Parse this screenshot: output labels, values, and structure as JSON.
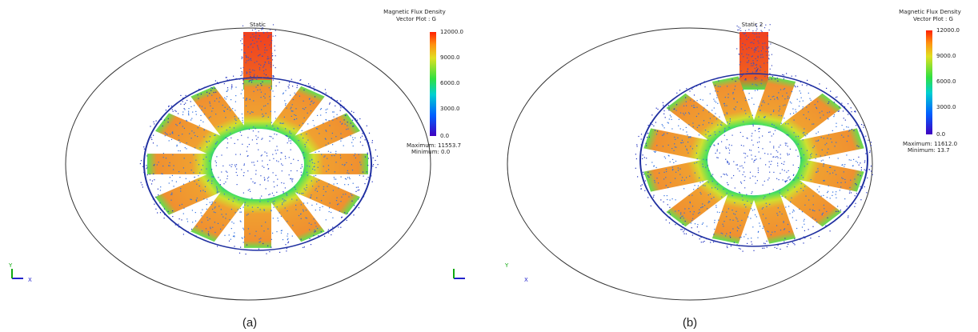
{
  "panels": [
    {
      "label": "Static",
      "legend_title": "Magnetic Flux Density",
      "legend_subtitle": "Vector Plot : G",
      "scale_labels": [
        "12000.0",
        "9000.0",
        "6000.0",
        "3000.0",
        "0.0"
      ],
      "maximum": "Maximum: 11553.7",
      "minimum": "Minimum: 0.0",
      "axis_y": "Y",
      "axis_x": "X",
      "caption": "(a)"
    },
    {
      "label": "Static 2",
      "legend_title": "Magnetic Flux Density",
      "legend_subtitle": "Vector Plot : G",
      "scale_labels": [
        "12000.0",
        "9000.0",
        "6000.0",
        "3000.0",
        "0.0"
      ],
      "maximum": "Maximum: 11612.0",
      "minimum": "Minimum: 13.7",
      "axis_y": "Y",
      "axis_x": "X",
      "caption": "(b)"
    }
  ]
}
